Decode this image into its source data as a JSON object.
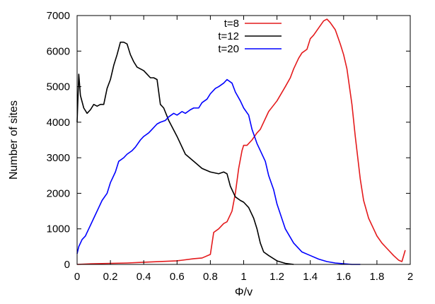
{
  "chart_data": {
    "type": "line",
    "title": "",
    "xlabel": "Φ/v",
    "ylabel": "Number of sites",
    "xlim": [
      0,
      2
    ],
    "ylim": [
      0,
      7000
    ],
    "x_ticks": [
      0,
      0.2,
      0.4,
      0.6,
      0.8,
      1,
      1.2,
      1.4,
      1.6,
      1.8,
      2
    ],
    "x_tick_labels": [
      "0",
      "0.2",
      "0.4",
      "0.6",
      "0.8",
      "1",
      "1.2",
      "1.4",
      "1.6",
      "1.8",
      "2"
    ],
    "y_ticks": [
      0,
      1000,
      2000,
      3000,
      4000,
      5000,
      6000,
      7000
    ],
    "y_tick_labels": [
      "0",
      "1000",
      "2000",
      "3000",
      "4000",
      "5000",
      "6000",
      "7000"
    ],
    "grid": false,
    "legend_position": "top-center",
    "series": [
      {
        "name": "t=8",
        "color": "#e41a1c",
        "x": [
          0,
          0.1,
          0.2,
          0.3,
          0.4,
          0.5,
          0.6,
          0.7,
          0.75,
          0.8,
          0.82,
          0.85,
          0.88,
          0.9,
          0.93,
          0.95,
          0.97,
          0.99,
          1.0,
          1.02,
          1.05,
          1.08,
          1.1,
          1.15,
          1.2,
          1.25,
          1.28,
          1.3,
          1.33,
          1.35,
          1.38,
          1.4,
          1.42,
          1.45,
          1.48,
          1.5,
          1.52,
          1.55,
          1.58,
          1.6,
          1.62,
          1.65,
          1.67,
          1.7,
          1.72,
          1.75,
          1.78,
          1.8,
          1.83,
          1.86,
          1.9,
          1.93,
          1.95,
          1.97
        ],
        "y": [
          0,
          20,
          30,
          40,
          60,
          80,
          100,
          160,
          180,
          280,
          900,
          1000,
          1150,
          1200,
          1500,
          2000,
          2700,
          3200,
          3350,
          3350,
          3500,
          3700,
          3800,
          4300,
          4600,
          5000,
          5250,
          5500,
          5800,
          5950,
          6050,
          6350,
          6450,
          6650,
          6850,
          6900,
          6800,
          6600,
          6200,
          5900,
          5500,
          4500,
          3600,
          2400,
          1800,
          1300,
          1000,
          800,
          600,
          450,
          250,
          120,
          80,
          400
        ]
      },
      {
        "name": "t=12",
        "color": "#000000",
        "x": [
          0,
          0.01,
          0.02,
          0.04,
          0.06,
          0.08,
          0.1,
          0.12,
          0.14,
          0.16,
          0.18,
          0.2,
          0.22,
          0.24,
          0.26,
          0.28,
          0.3,
          0.32,
          0.34,
          0.36,
          0.38,
          0.4,
          0.42,
          0.44,
          0.46,
          0.48,
          0.5,
          0.52,
          0.55,
          0.6,
          0.65,
          0.7,
          0.75,
          0.8,
          0.85,
          0.88,
          0.9,
          0.92,
          0.95,
          0.98,
          1.0,
          1.03,
          1.06,
          1.08,
          1.1,
          1.12,
          1.15,
          1.2,
          1.25,
          1.3
        ],
        "y": [
          4000,
          5350,
          4750,
          4400,
          4250,
          4350,
          4500,
          4450,
          4500,
          4500,
          4950,
          5200,
          5600,
          5900,
          6250,
          6250,
          6200,
          5900,
          5700,
          5550,
          5500,
          5450,
          5350,
          5250,
          5250,
          5200,
          4500,
          4400,
          4050,
          3600,
          3100,
          2900,
          2700,
          2600,
          2550,
          2600,
          2550,
          2200,
          1900,
          1800,
          1750,
          1600,
          1300,
          1000,
          600,
          350,
          250,
          100,
          30,
          0
        ]
      },
      {
        "name": "t=20",
        "color": "#0000ff",
        "x": [
          0,
          0.01,
          0.03,
          0.05,
          0.07,
          0.1,
          0.13,
          0.15,
          0.18,
          0.2,
          0.23,
          0.25,
          0.28,
          0.3,
          0.33,
          0.35,
          0.38,
          0.4,
          0.43,
          0.45,
          0.48,
          0.5,
          0.53,
          0.55,
          0.58,
          0.6,
          0.63,
          0.65,
          0.68,
          0.7,
          0.73,
          0.75,
          0.78,
          0.8,
          0.83,
          0.85,
          0.88,
          0.9,
          0.93,
          0.95,
          0.98,
          1.0,
          1.03,
          1.05,
          1.08,
          1.1,
          1.13,
          1.15,
          1.18,
          1.2,
          1.25,
          1.3,
          1.35,
          1.4,
          1.45,
          1.5,
          1.55,
          1.6,
          1.65,
          1.7
        ],
        "y": [
          300,
          500,
          700,
          800,
          1000,
          1300,
          1600,
          1800,
          2000,
          2300,
          2600,
          2900,
          3000,
          3100,
          3200,
          3300,
          3500,
          3600,
          3700,
          3800,
          3950,
          4000,
          4050,
          4150,
          4250,
          4200,
          4300,
          4250,
          4350,
          4400,
          4400,
          4550,
          4650,
          4800,
          4950,
          5000,
          5100,
          5200,
          5100,
          4850,
          4600,
          4400,
          4200,
          3800,
          3400,
          3200,
          2900,
          2500,
          2100,
          1700,
          1000,
          600,
          350,
          250,
          150,
          80,
          40,
          20,
          0,
          0
        ]
      }
    ]
  }
}
